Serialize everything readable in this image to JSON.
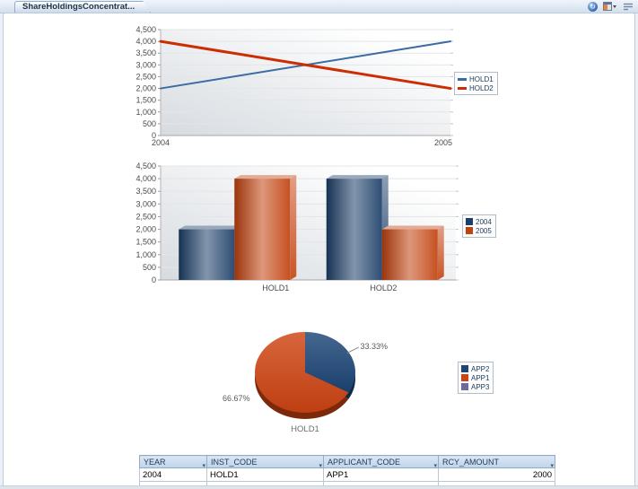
{
  "window": {
    "tab_title": "ShareHoldingsConcentrat...",
    "toolbar_icons": [
      "refresh-icon",
      "layout-menu-icon",
      "chevron-down-icon",
      "list-menu-icon"
    ]
  },
  "chart_data": [
    {
      "type": "line",
      "x": [
        "2004",
        "2005"
      ],
      "series": [
        {
          "name": "HOLD1",
          "color": "#3a6ca3",
          "values": [
            2000,
            4000
          ],
          "line_width": 2
        },
        {
          "name": "HOLD2",
          "color": "#cc2e04",
          "values": [
            4000,
            2000
          ],
          "line_width": 3
        }
      ],
      "ylim": [
        0,
        4500
      ],
      "yticks": [
        0,
        500,
        1000,
        1500,
        2000,
        2500,
        3000,
        3500,
        4000,
        4500
      ],
      "grid": true,
      "legend_position": "right"
    },
    {
      "type": "bar",
      "categories": [
        "HOLD1",
        "HOLD2"
      ],
      "series": [
        {
          "name": "2004",
          "color": "#1c3f68",
          "values": [
            2000,
            4000
          ]
        },
        {
          "name": "2005",
          "color": "#c2410e",
          "values": [
            4000,
            2000
          ]
        }
      ],
      "ylim": [
        0,
        4500
      ],
      "yticks": [
        0,
        500,
        1000,
        1500,
        2000,
        2500,
        3000,
        3500,
        4000,
        4500
      ],
      "grid": true,
      "legend_position": "right"
    },
    {
      "type": "pie",
      "title": "HOLD1",
      "slices": [
        {
          "name": "APP2",
          "value": 33.33,
          "label": "33.33%",
          "color": "#1c4676",
          "leader_line": true
        },
        {
          "name": "APP1",
          "value": 66.67,
          "label": "66.67%",
          "color": "#cf4413",
          "leader_line": false
        },
        {
          "name": "APP3",
          "value": 0,
          "color": "#6a6c9e"
        }
      ],
      "legend_position": "right"
    }
  ],
  "table": {
    "columns": [
      "YEAR",
      "INST_CODE",
      "APPLICANT_CODE",
      "RCY_AMOUNT"
    ],
    "column_align": [
      "left",
      "left",
      "left",
      "right"
    ],
    "rows": [
      [
        "2004",
        "HOLD1",
        "APP1",
        "2000"
      ]
    ]
  }
}
